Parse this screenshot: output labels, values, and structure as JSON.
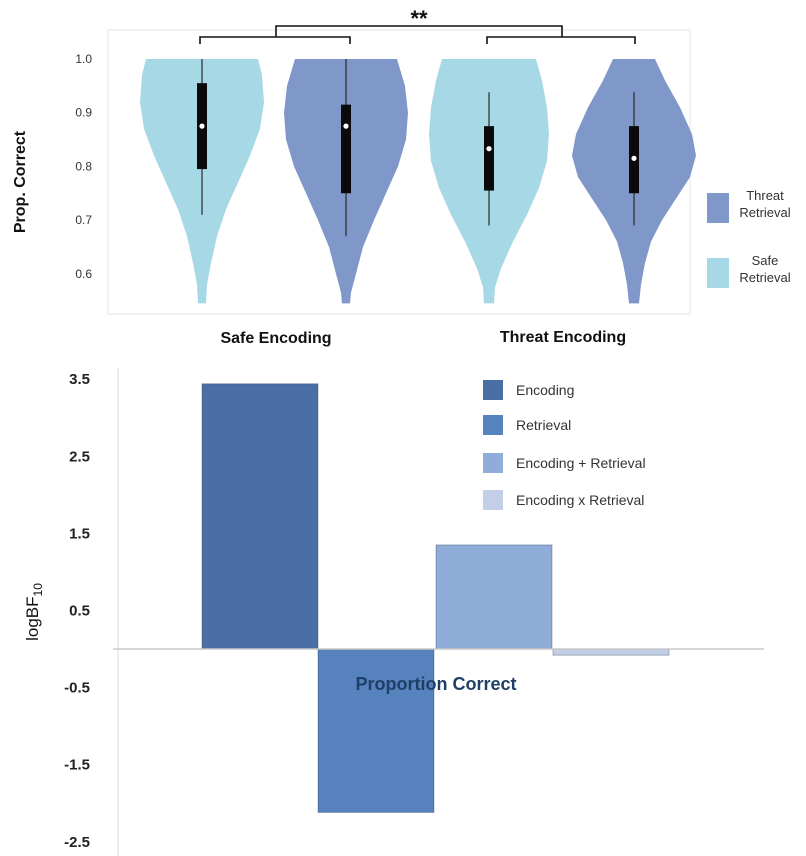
{
  "chart_data": [
    {
      "type": "violin",
      "ylabel": "Prop. Correct",
      "ylim": [
        0.545,
        1.0
      ],
      "yticks": [
        "0.6",
        "0.7",
        "0.8",
        "0.9",
        "1.0"
      ],
      "categories": [
        "Safe Encoding",
        "Threat Encoding"
      ],
      "significance": "**",
      "legend": [
        {
          "label_lines": [
            "Threat",
            "Retrieval"
          ],
          "color": "#7f97c9"
        },
        {
          "label_lines": [
            "Safe",
            "Retrieval"
          ],
          "color": "#a6d8e6"
        }
      ],
      "series": [
        {
          "category": "Safe Encoding",
          "retrieval": "Safe",
          "color": "#a6d8e6",
          "median": 0.875,
          "q1": 0.795,
          "q3": 0.955,
          "whisker_low": 0.71,
          "whisker_high": 1.0
        },
        {
          "category": "Safe Encoding",
          "retrieval": "Threat",
          "color": "#7f97c9",
          "median": 0.875,
          "q1": 0.75,
          "q3": 0.915,
          "whisker_low": 0.67,
          "whisker_high": 1.0
        },
        {
          "category": "Threat Encoding",
          "retrieval": "Safe",
          "color": "#a6d8e6",
          "median": 0.833,
          "q1": 0.755,
          "q3": 0.875,
          "whisker_low": 0.69,
          "whisker_high": 0.938
        },
        {
          "category": "Threat Encoding",
          "retrieval": "Threat",
          "color": "#7f97c9",
          "median": 0.815,
          "q1": 0.75,
          "q3": 0.875,
          "whisker_low": 0.69,
          "whisker_high": 0.938
        }
      ]
    },
    {
      "type": "bar",
      "ylabel_main": "logBF",
      "ylabel_sub": "10",
      "ylim": [
        -2.5,
        3.5
      ],
      "yticks": [
        "3.5",
        "2.5",
        "1.5",
        "0.5",
        "-0.5",
        "-1.5",
        "-2.5"
      ],
      "annotation": "Proportion Correct",
      "categories": [
        "Encoding",
        "Retrieval",
        "Encoding + Retrieval",
        "Encoding x Retrieval"
      ],
      "values": [
        3.44,
        -2.12,
        1.35,
        -0.08
      ],
      "colors": [
        "#4a6fa5",
        "#5683bd",
        "#90acd8",
        "#c2cfe6"
      ]
    }
  ]
}
